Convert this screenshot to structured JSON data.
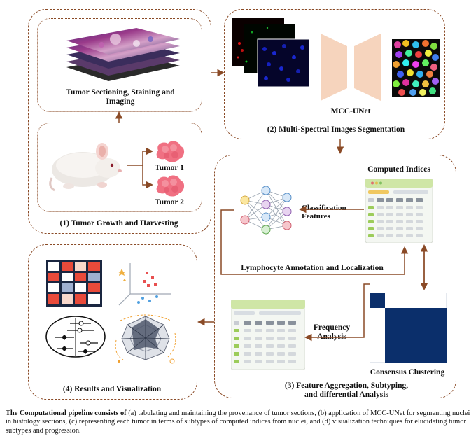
{
  "panel1": {
    "title": "(1) Tumor Growth and Harvesting",
    "sectioning": "Tumor Sectioning, Staining and Imaging",
    "tumor1": "Tumor 1",
    "tumor2": "Tumor 2"
  },
  "panel2": {
    "title": "(2) Multi-Spectral Images Segmentation",
    "network": "MCC-UNet"
  },
  "panel3": {
    "title_line1": "(3) Feature Aggregation, Subtyping,",
    "title_line2": "and differential Analysis",
    "computed_indices": "Computed Indices",
    "classification_features": "Classification Features",
    "lymphocyte": "Lymphocyte Annotation and Localization",
    "frequency_analysis": "Frequency Analysis",
    "consensus_clustering": "Consensus Clustering"
  },
  "panel4": {
    "title": "(4) Results and Visualization"
  },
  "caption": {
    "lead": "The Computational pipeline consists of",
    "body": " (a) tabulating and maintaining the provenance of tumor sections, (b) application of MCC-UNet for segmenting nuclei in histology sections, (c) representing each tumor in terms of subtypes of computed indices from nuclei, and (d) visualization techniques for elucidating tumor subtypes and progression."
  },
  "colors": {
    "border": "#8a4a26",
    "arrow": "#8a4a26",
    "unet": "#f6d4bd",
    "cluster": "#0b2f6b",
    "table_header": "#cfe6a6",
    "table_green": "#9ccc5a"
  }
}
